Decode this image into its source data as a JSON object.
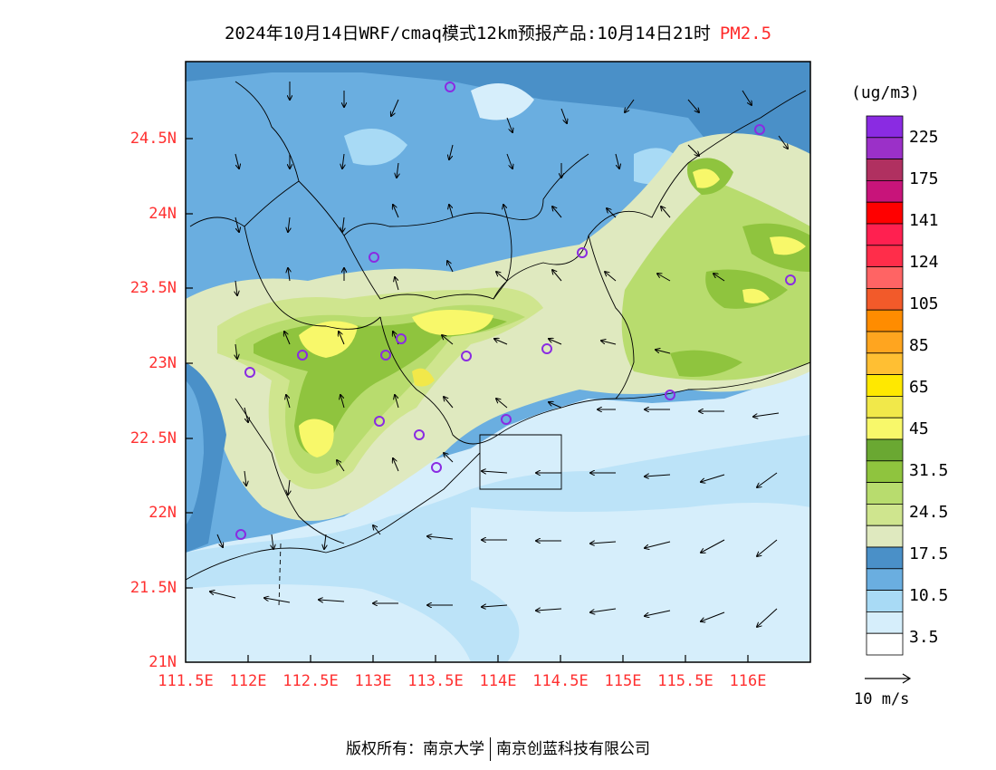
{
  "title": {
    "text": "2024年10月14日WRF/cmaq模式12km预报产品:10月14日21时",
    "variable": "PM2.5"
  },
  "units": "(ug/m3)",
  "lat_labels": [
    "24.5N",
    "24N",
    "23.5N",
    "23N",
    "22.5N",
    "22N",
    "21.5N",
    "21N"
  ],
  "lon_labels": [
    "111.5E",
    "112E",
    "112.5E",
    "113E",
    "113.5E",
    "114E",
    "114.5E",
    "115E",
    "115.5E",
    "116E"
  ],
  "colorbar": {
    "labels": [
      "225",
      "175",
      "141",
      "124",
      "105",
      "85",
      "65",
      "45",
      "31.5",
      "24.5",
      "17.5",
      "10.5",
      "3.5"
    ],
    "colors": [
      "#8a2be2",
      "#9b30c8",
      "#b03060",
      "#c8147a",
      "#ff0000",
      "#ff2050",
      "#ff2d4a",
      "#ff6464",
      "#f25a2a",
      "#ff8c00",
      "#ffa51f",
      "#ffbf33",
      "#ffe800",
      "#f1e84a",
      "#f8f86a",
      "#6aa832",
      "#8fc43e",
      "#b8dc6e",
      "#cfe58e",
      "#dfe9bf",
      "#4a90c8",
      "#6aaee0",
      "#a8daf5",
      "#d6eefb",
      "#ffffff"
    ]
  },
  "vector_label": "10 m/s",
  "footer": {
    "left": "版权所有：南京大学",
    "right": "南京创蓝科技有限公司"
  }
}
